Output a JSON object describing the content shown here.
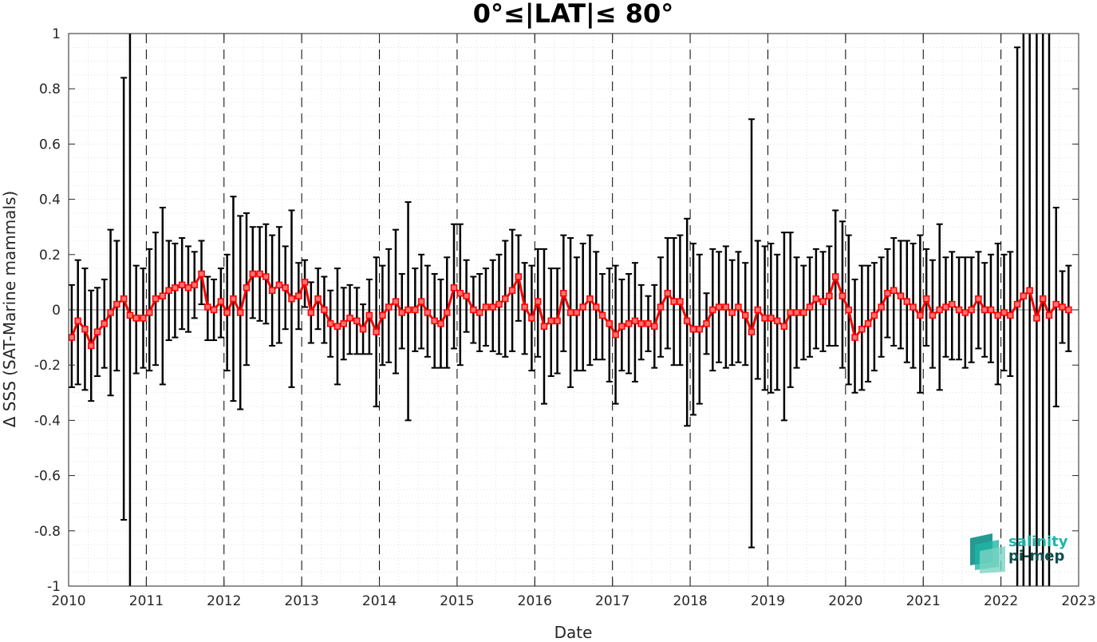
{
  "chart_data": {
    "type": "line",
    "title": "0°≤|LAT|≤ 80°",
    "xlabel": "Date",
    "ylabel": "Δ SSS (SAT-Marine mammals)",
    "xlim": [
      2010,
      2023
    ],
    "ylim": [
      -1,
      1
    ],
    "x_ticks": [
      "2010",
      "2011",
      "2012",
      "2013",
      "2014",
      "2015",
      "2016",
      "2017",
      "2018",
      "2019",
      "2020",
      "2021",
      "2022",
      "2023"
    ],
    "y_ticks": [
      "-1",
      "-0.8",
      "-0.6",
      "-0.4",
      "-0.2",
      "0",
      "0.2",
      "0.4",
      "0.6",
      "0.8",
      "1"
    ],
    "grid": "dotted minor grid, dashed vertical lines at year boundaries",
    "series": [
      {
        "color": "#ff0000",
        "marker": "square",
        "errorbar_color": "#000000",
        "points": [
          {
            "x": 2010.04,
            "y": -0.1,
            "lo": -0.28,
            "hi": 0.09
          },
          {
            "x": 2010.12,
            "y": -0.04,
            "lo": -0.27,
            "hi": 0.18
          },
          {
            "x": 2010.21,
            "y": -0.07,
            "lo": -0.29,
            "hi": 0.15
          },
          {
            "x": 2010.29,
            "y": -0.13,
            "lo": -0.33,
            "hi": 0.07
          },
          {
            "x": 2010.37,
            "y": -0.08,
            "lo": -0.24,
            "hi": 0.08
          },
          {
            "x": 2010.46,
            "y": -0.05,
            "lo": -0.21,
            "hi": 0.11
          },
          {
            "x": 2010.54,
            "y": -0.01,
            "lo": -0.31,
            "hi": 0.29
          },
          {
            "x": 2010.62,
            "y": 0.02,
            "lo": -0.22,
            "hi": 0.25
          },
          {
            "x": 2010.71,
            "y": 0.04,
            "lo": -0.76,
            "hi": 0.84
          },
          {
            "x": 2010.79,
            "y": -0.02,
            "lo": -1.0,
            "hi": 1.0
          },
          {
            "x": 2010.87,
            "y": -0.03,
            "lo": -0.23,
            "hi": 0.16
          },
          {
            "x": 2010.96,
            "y": -0.03,
            "lo": -0.21,
            "hi": 0.15
          },
          {
            "x": 2011.04,
            "y": -0.01,
            "lo": -0.22,
            "hi": 0.22
          },
          {
            "x": 2011.12,
            "y": 0.04,
            "lo": -0.2,
            "hi": 0.28
          },
          {
            "x": 2011.21,
            "y": 0.05,
            "lo": -0.27,
            "hi": 0.37
          },
          {
            "x": 2011.29,
            "y": 0.07,
            "lo": -0.11,
            "hi": 0.25
          },
          {
            "x": 2011.37,
            "y": 0.08,
            "lo": -0.1,
            "hi": 0.24
          },
          {
            "x": 2011.46,
            "y": 0.09,
            "lo": -0.07,
            "hi": 0.26
          },
          {
            "x": 2011.54,
            "y": 0.08,
            "lo": -0.08,
            "hi": 0.23
          },
          {
            "x": 2011.62,
            "y": 0.09,
            "lo": -0.03,
            "hi": 0.21
          },
          {
            "x": 2011.71,
            "y": 0.13,
            "lo": 0.02,
            "hi": 0.25
          },
          {
            "x": 2011.79,
            "y": 0.01,
            "lo": -0.11,
            "hi": 0.12
          },
          {
            "x": 2011.87,
            "y": 0.0,
            "lo": -0.11,
            "hi": 0.11
          },
          {
            "x": 2011.96,
            "y": 0.03,
            "lo": -0.1,
            "hi": 0.15
          },
          {
            "x": 2012.04,
            "y": -0.01,
            "lo": -0.22,
            "hi": 0.2
          },
          {
            "x": 2012.12,
            "y": 0.04,
            "lo": -0.33,
            "hi": 0.41
          },
          {
            "x": 2012.21,
            "y": -0.01,
            "lo": -0.36,
            "hi": 0.34
          },
          {
            "x": 2012.29,
            "y": 0.08,
            "lo": -0.2,
            "hi": 0.35
          },
          {
            "x": 2012.37,
            "y": 0.13,
            "lo": -0.03,
            "hi": 0.3
          },
          {
            "x": 2012.46,
            "y": 0.13,
            "lo": -0.04,
            "hi": 0.3
          },
          {
            "x": 2012.54,
            "y": 0.12,
            "lo": -0.05,
            "hi": 0.31
          },
          {
            "x": 2012.62,
            "y": 0.07,
            "lo": -0.13,
            "hi": 0.27
          },
          {
            "x": 2012.71,
            "y": 0.09,
            "lo": -0.12,
            "hi": 0.3
          },
          {
            "x": 2012.79,
            "y": 0.08,
            "lo": -0.07,
            "hi": 0.23
          },
          {
            "x": 2012.87,
            "y": 0.04,
            "lo": -0.28,
            "hi": 0.36
          },
          {
            "x": 2012.96,
            "y": 0.05,
            "lo": -0.07,
            "hi": 0.17
          },
          {
            "x": 2013.04,
            "y": 0.1,
            "lo": 0.01,
            "hi": 0.18
          },
          {
            "x": 2013.12,
            "y": -0.01,
            "lo": -0.12,
            "hi": 0.1
          },
          {
            "x": 2013.21,
            "y": 0.04,
            "lo": -0.07,
            "hi": 0.15
          },
          {
            "x": 2013.29,
            "y": 0.0,
            "lo": -0.12,
            "hi": 0.12
          },
          {
            "x": 2013.37,
            "y": -0.05,
            "lo": -0.17,
            "hi": 0.07
          },
          {
            "x": 2013.46,
            "y": -0.06,
            "lo": -0.27,
            "hi": 0.15
          },
          {
            "x": 2013.54,
            "y": -0.05,
            "lo": -0.18,
            "hi": 0.08
          },
          {
            "x": 2013.62,
            "y": -0.03,
            "lo": -0.16,
            "hi": 0.09
          },
          {
            "x": 2013.71,
            "y": -0.04,
            "lo": -0.16,
            "hi": 0.08
          },
          {
            "x": 2013.79,
            "y": -0.07,
            "lo": -0.16,
            "hi": 0.02
          },
          {
            "x": 2013.87,
            "y": -0.02,
            "lo": -0.16,
            "hi": 0.11
          },
          {
            "x": 2013.96,
            "y": -0.08,
            "lo": -0.35,
            "hi": 0.19
          },
          {
            "x": 2014.04,
            "y": -0.02,
            "lo": -0.2,
            "hi": 0.16
          },
          {
            "x": 2014.12,
            "y": 0.01,
            "lo": -0.19,
            "hi": 0.22
          },
          {
            "x": 2014.21,
            "y": 0.03,
            "lo": -0.23,
            "hi": 0.29
          },
          {
            "x": 2014.29,
            "y": -0.01,
            "lo": -0.14,
            "hi": 0.13
          },
          {
            "x": 2014.37,
            "y": 0.0,
            "lo": -0.4,
            "hi": 0.39
          },
          {
            "x": 2014.46,
            "y": 0.0,
            "lo": -0.15,
            "hi": 0.15
          },
          {
            "x": 2014.54,
            "y": 0.03,
            "lo": -0.14,
            "hi": 0.2
          },
          {
            "x": 2014.62,
            "y": -0.01,
            "lo": -0.17,
            "hi": 0.16
          },
          {
            "x": 2014.71,
            "y": -0.04,
            "lo": -0.21,
            "hi": 0.13
          },
          {
            "x": 2014.79,
            "y": -0.05,
            "lo": -0.21,
            "hi": 0.11
          },
          {
            "x": 2014.87,
            "y": -0.01,
            "lo": -0.21,
            "hi": 0.19
          },
          {
            "x": 2014.96,
            "y": 0.08,
            "lo": -0.14,
            "hi": 0.31
          },
          {
            "x": 2015.04,
            "y": 0.06,
            "lo": -0.2,
            "hi": 0.31
          },
          {
            "x": 2015.12,
            "y": 0.05,
            "lo": -0.08,
            "hi": 0.18
          },
          {
            "x": 2015.21,
            "y": 0.0,
            "lo": -0.12,
            "hi": 0.12
          },
          {
            "x": 2015.29,
            "y": -0.01,
            "lo": -0.15,
            "hi": 0.13
          },
          {
            "x": 2015.37,
            "y": 0.01,
            "lo": -0.13,
            "hi": 0.15
          },
          {
            "x": 2015.46,
            "y": 0.01,
            "lo": -0.15,
            "hi": 0.18
          },
          {
            "x": 2015.54,
            "y": 0.02,
            "lo": -0.16,
            "hi": 0.2
          },
          {
            "x": 2015.62,
            "y": 0.04,
            "lo": -0.17,
            "hi": 0.25
          },
          {
            "x": 2015.71,
            "y": 0.07,
            "lo": -0.15,
            "hi": 0.29
          },
          {
            "x": 2015.79,
            "y": 0.12,
            "lo": -0.04,
            "hi": 0.27
          },
          {
            "x": 2015.87,
            "y": 0.01,
            "lo": -0.16,
            "hi": 0.17
          },
          {
            "x": 2015.96,
            "y": -0.03,
            "lo": -0.22,
            "hi": 0.16
          },
          {
            "x": 2016.04,
            "y": 0.03,
            "lo": -0.17,
            "hi": 0.22
          },
          {
            "x": 2016.12,
            "y": -0.06,
            "lo": -0.34,
            "hi": 0.22
          },
          {
            "x": 2016.21,
            "y": -0.04,
            "lo": -0.24,
            "hi": 0.15
          },
          {
            "x": 2016.29,
            "y": -0.04,
            "lo": -0.23,
            "hi": 0.15
          },
          {
            "x": 2016.37,
            "y": 0.06,
            "lo": -0.15,
            "hi": 0.27
          },
          {
            "x": 2016.46,
            "y": -0.01,
            "lo": -0.28,
            "hi": 0.26
          },
          {
            "x": 2016.54,
            "y": -0.01,
            "lo": -0.22,
            "hi": 0.19
          },
          {
            "x": 2016.62,
            "y": 0.01,
            "lo": -0.22,
            "hi": 0.24
          },
          {
            "x": 2016.71,
            "y": 0.04,
            "lo": -0.2,
            "hi": 0.27
          },
          {
            "x": 2016.79,
            "y": 0.01,
            "lo": -0.18,
            "hi": 0.21
          },
          {
            "x": 2016.87,
            "y": -0.02,
            "lo": -0.18,
            "hi": 0.13
          },
          {
            "x": 2016.96,
            "y": -0.05,
            "lo": -0.26,
            "hi": 0.15
          },
          {
            "x": 2017.04,
            "y": -0.09,
            "lo": -0.34,
            "hi": 0.16
          },
          {
            "x": 2017.12,
            "y": -0.06,
            "lo": -0.22,
            "hi": 0.11
          },
          {
            "x": 2017.21,
            "y": -0.05,
            "lo": -0.23,
            "hi": 0.13
          },
          {
            "x": 2017.29,
            "y": -0.04,
            "lo": -0.26,
            "hi": 0.17
          },
          {
            "x": 2017.37,
            "y": -0.05,
            "lo": -0.18,
            "hi": 0.09
          },
          {
            "x": 2017.46,
            "y": -0.05,
            "lo": -0.15,
            "hi": 0.05
          },
          {
            "x": 2017.54,
            "y": -0.06,
            "lo": -0.21,
            "hi": 0.09
          },
          {
            "x": 2017.62,
            "y": 0.01,
            "lo": -0.17,
            "hi": 0.19
          },
          {
            "x": 2017.71,
            "y": 0.06,
            "lo": -0.14,
            "hi": 0.26
          },
          {
            "x": 2017.79,
            "y": 0.03,
            "lo": -0.2,
            "hi": 0.26
          },
          {
            "x": 2017.87,
            "y": 0.03,
            "lo": -0.2,
            "hi": 0.27
          },
          {
            "x": 2017.96,
            "y": -0.04,
            "lo": -0.42,
            "hi": 0.33
          },
          {
            "x": 2018.04,
            "y": -0.07,
            "lo": -0.38,
            "hi": 0.24
          },
          {
            "x": 2018.12,
            "y": -0.07,
            "lo": -0.34,
            "hi": 0.2
          },
          {
            "x": 2018.21,
            "y": -0.05,
            "lo": -0.16,
            "hi": 0.06
          },
          {
            "x": 2018.29,
            "y": 0.0,
            "lo": -0.22,
            "hi": 0.22
          },
          {
            "x": 2018.37,
            "y": 0.01,
            "lo": -0.19,
            "hi": 0.21
          },
          {
            "x": 2018.46,
            "y": 0.01,
            "lo": -0.21,
            "hi": 0.23
          },
          {
            "x": 2018.54,
            "y": -0.01,
            "lo": -0.2,
            "hi": 0.18
          },
          {
            "x": 2018.62,
            "y": 0.01,
            "lo": -0.19,
            "hi": 0.21
          },
          {
            "x": 2018.71,
            "y": -0.02,
            "lo": -0.2,
            "hi": 0.17
          },
          {
            "x": 2018.79,
            "y": -0.08,
            "lo": -0.86,
            "hi": 0.69
          },
          {
            "x": 2018.87,
            "y": 0.0,
            "lo": -0.25,
            "hi": 0.25
          },
          {
            "x": 2018.96,
            "y": -0.03,
            "lo": -0.29,
            "hi": 0.23
          },
          {
            "x": 2019.04,
            "y": -0.03,
            "lo": -0.3,
            "hi": 0.24
          },
          {
            "x": 2019.12,
            "y": -0.04,
            "lo": -0.29,
            "hi": 0.2
          },
          {
            "x": 2019.21,
            "y": -0.06,
            "lo": -0.4,
            "hi": 0.28
          },
          {
            "x": 2019.29,
            "y": -0.01,
            "lo": -0.28,
            "hi": 0.28
          },
          {
            "x": 2019.37,
            "y": -0.01,
            "lo": -0.21,
            "hi": 0.19
          },
          {
            "x": 2019.46,
            "y": -0.01,
            "lo": -0.18,
            "hi": 0.16
          },
          {
            "x": 2019.54,
            "y": 0.01,
            "lo": -0.17,
            "hi": 0.19
          },
          {
            "x": 2019.62,
            "y": 0.04,
            "lo": -0.14,
            "hi": 0.22
          },
          {
            "x": 2019.71,
            "y": 0.03,
            "lo": -0.15,
            "hi": 0.21
          },
          {
            "x": 2019.79,
            "y": 0.05,
            "lo": -0.13,
            "hi": 0.23
          },
          {
            "x": 2019.87,
            "y": 0.12,
            "lo": -0.13,
            "hi": 0.36
          },
          {
            "x": 2019.96,
            "y": 0.05,
            "lo": -0.21,
            "hi": 0.32
          },
          {
            "x": 2020.04,
            "y": 0.0,
            "lo": -0.27,
            "hi": 0.27
          },
          {
            "x": 2020.12,
            "y": -0.1,
            "lo": -0.3,
            "hi": 0.11
          },
          {
            "x": 2020.21,
            "y": -0.07,
            "lo": -0.29,
            "hi": 0.16
          },
          {
            "x": 2020.29,
            "y": -0.05,
            "lo": -0.26,
            "hi": 0.16
          },
          {
            "x": 2020.37,
            "y": -0.02,
            "lo": -0.22,
            "hi": 0.17
          },
          {
            "x": 2020.46,
            "y": 0.01,
            "lo": -0.17,
            "hi": 0.19
          },
          {
            "x": 2020.54,
            "y": 0.06,
            "lo": -0.1,
            "hi": 0.22
          },
          {
            "x": 2020.62,
            "y": 0.07,
            "lo": -0.13,
            "hi": 0.26
          },
          {
            "x": 2020.71,
            "y": 0.05,
            "lo": -0.14,
            "hi": 0.25
          },
          {
            "x": 2020.79,
            "y": 0.03,
            "lo": -0.19,
            "hi": 0.25
          },
          {
            "x": 2020.87,
            "y": 0.01,
            "lo": -0.21,
            "hi": 0.24
          },
          {
            "x": 2020.96,
            "y": -0.02,
            "lo": -0.3,
            "hi": 0.27
          },
          {
            "x": 2021.04,
            "y": 0.04,
            "lo": -0.13,
            "hi": 0.22
          },
          {
            "x": 2021.12,
            "y": -0.02,
            "lo": -0.21,
            "hi": 0.18
          },
          {
            "x": 2021.21,
            "y": 0.0,
            "lo": -0.29,
            "hi": 0.31
          },
          {
            "x": 2021.29,
            "y": 0.01,
            "lo": -0.17,
            "hi": 0.19
          },
          {
            "x": 2021.37,
            "y": 0.02,
            "lo": -0.18,
            "hi": 0.21
          },
          {
            "x": 2021.46,
            "y": 0.0,
            "lo": -0.18,
            "hi": 0.19
          },
          {
            "x": 2021.54,
            "y": -0.01,
            "lo": -0.21,
            "hi": 0.19
          },
          {
            "x": 2021.62,
            "y": 0.0,
            "lo": -0.19,
            "hi": 0.19
          },
          {
            "x": 2021.71,
            "y": 0.04,
            "lo": -0.14,
            "hi": 0.21
          },
          {
            "x": 2021.79,
            "y": 0.0,
            "lo": -0.17,
            "hi": 0.17
          },
          {
            "x": 2021.87,
            "y": 0.0,
            "lo": -0.19,
            "hi": 0.2
          },
          {
            "x": 2021.96,
            "y": -0.02,
            "lo": -0.27,
            "hi": 0.24
          },
          {
            "x": 2022.04,
            "y": -0.01,
            "lo": -0.22,
            "hi": 0.2
          },
          {
            "x": 2022.12,
            "y": -0.02,
            "lo": -0.24,
            "hi": 0.21
          },
          {
            "x": 2022.21,
            "y": 0.02,
            "lo": -1.0,
            "hi": 0.95
          },
          {
            "x": 2022.29,
            "y": 0.05,
            "lo": -1.0,
            "hi": 1.0
          },
          {
            "x": 2022.37,
            "y": 0.07,
            "lo": -1.0,
            "hi": 1.0
          },
          {
            "x": 2022.46,
            "y": -0.03,
            "lo": -1.0,
            "hi": 1.0
          },
          {
            "x": 2022.54,
            "y": 0.04,
            "lo": -1.0,
            "hi": 1.0
          },
          {
            "x": 2022.62,
            "y": -0.02,
            "lo": -1.0,
            "hi": 1.0
          },
          {
            "x": 2022.71,
            "y": 0.02,
            "lo": -0.35,
            "hi": 0.37
          },
          {
            "x": 2022.79,
            "y": 0.01,
            "lo": -0.12,
            "hi": 0.14
          },
          {
            "x": 2022.87,
            "y": 0.0,
            "lo": -0.15,
            "hi": 0.16
          }
        ]
      }
    ]
  },
  "logo": {
    "line1": "salinity",
    "line2": "pi-mep",
    "colors": [
      "#0e8f86",
      "#1fb5a6",
      "#7bd4c3",
      "#0b4f4a"
    ]
  }
}
